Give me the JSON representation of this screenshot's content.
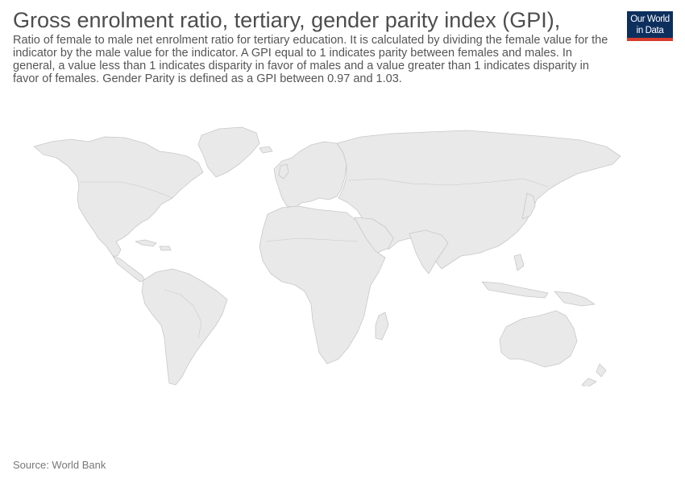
{
  "header": {
    "title": "Gross enrolment ratio, tertiary, gender parity index (GPI),",
    "subtitle": "Ratio of female to male net enrolment ratio for tertiary education. It is calculated by dividing the female value for the indicator by the male value for the indicator. A GPI equal to 1 indicates parity between females and males. In general, a value less than 1 indicates disparity in favor of males and a value greater than 1 indicates disparity in favor of females. Gender Parity is defined as a GPI between 0.97 and 1.03."
  },
  "logo": {
    "line1": "Our World",
    "line2": "in Data",
    "background_color": "#0d2f5e",
    "accent_color": "#d73c2d"
  },
  "map": {
    "fill_color": "#e9e9e9",
    "border_color": "#c8c8c8"
  },
  "footer": {
    "source": "Source: World Bank"
  }
}
